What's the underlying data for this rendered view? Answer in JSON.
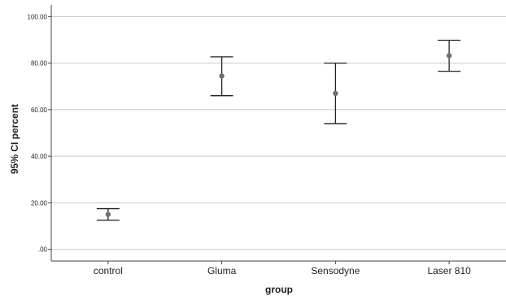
{
  "chart_data": {
    "type": "errorbar",
    "title": "",
    "xlabel": "group",
    "ylabel": "95% CI percent",
    "categories": [
      "control",
      "Gluma",
      "Sensodyne",
      "Laser 810"
    ],
    "series": [
      {
        "mean": [
          15.0,
          74.5,
          67.0,
          83.2
        ],
        "lower": [
          12.5,
          66.0,
          54.0,
          76.5
        ],
        "upper": [
          17.5,
          82.7,
          80.0,
          89.8
        ]
      }
    ],
    "ylim": [
      -5,
      105
    ],
    "yticks": [
      0,
      20,
      40,
      60,
      80,
      100
    ],
    "ytick_labels": [
      ".00",
      "20.00",
      "40.00",
      "60.00",
      "80.00",
      "100.00"
    ],
    "grid": true,
    "legend": "none",
    "colors": {
      "marker": "#6f6f6f",
      "bar": "#222222",
      "grid": "#c8c8c8"
    }
  }
}
